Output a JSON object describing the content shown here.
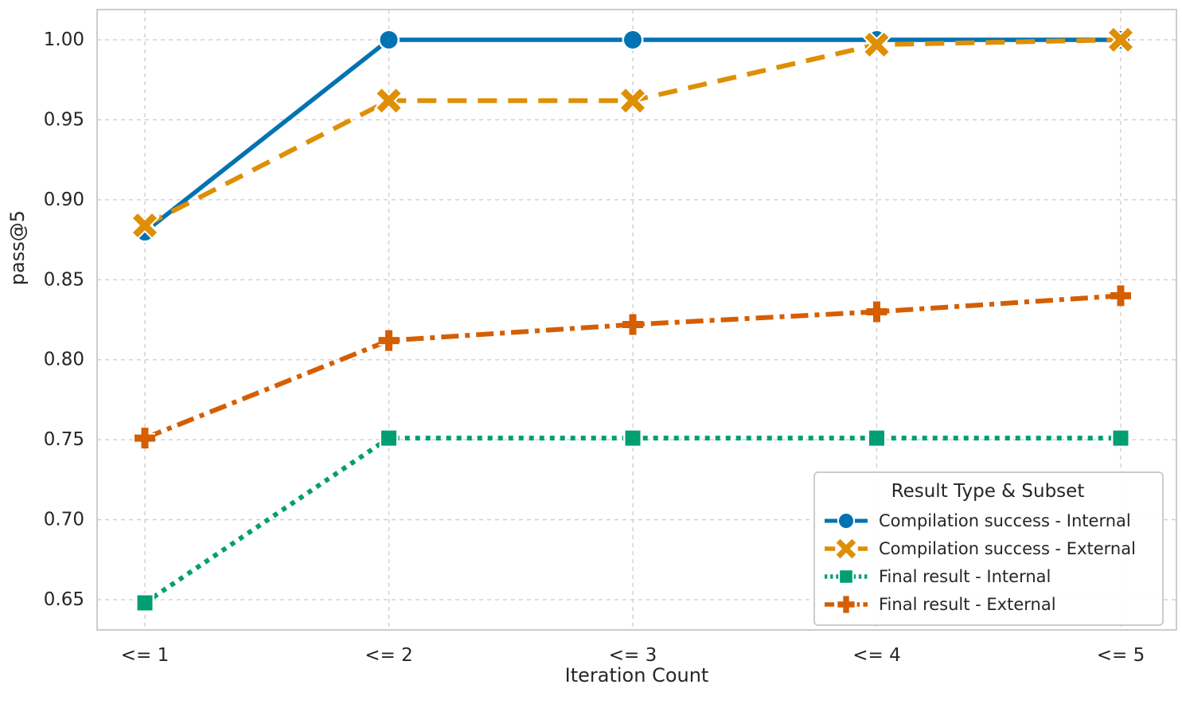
{
  "chart_data": {
    "type": "line",
    "title": "",
    "xlabel": "Iteration Count",
    "ylabel": "pass@5",
    "categories": [
      "<= 1",
      "<= 2",
      "<= 3",
      "<= 4",
      "<= 5"
    ],
    "y_ticks": [
      0.65,
      0.7,
      0.75,
      0.8,
      0.85,
      0.9,
      0.95,
      1.0
    ],
    "ylim": [
      0.631,
      1.019
    ],
    "grid": {
      "visible": true,
      "axis": "both",
      "style": "dashed",
      "color": "#cccccc"
    },
    "legend": {
      "title": "Result Type & Subset",
      "position": "lower-right"
    },
    "series": [
      {
        "name": "Compilation success - Internal",
        "color": "#0173B2",
        "linestyle": "solid",
        "marker": "circle",
        "values": [
          0.88,
          1.0,
          1.0,
          1.0,
          1.0
        ]
      },
      {
        "name": "Compilation success - External",
        "color": "#DE8F05",
        "linestyle": "dashed",
        "marker": "x",
        "values": [
          0.884,
          0.962,
          0.962,
          0.997,
          1.0
        ]
      },
      {
        "name": "Final result - Internal",
        "color": "#029E73",
        "linestyle": "dotted",
        "marker": "square",
        "values": [
          0.648,
          0.751,
          0.751,
          0.751,
          0.751
        ]
      },
      {
        "name": "Final result - External",
        "color": "#D55E00",
        "linestyle": "dashdot",
        "marker": "plus",
        "values": [
          0.751,
          0.812,
          0.822,
          0.83,
          0.84
        ]
      }
    ],
    "axis_text_color": "#262626",
    "spine_color": "#cccccc"
  }
}
